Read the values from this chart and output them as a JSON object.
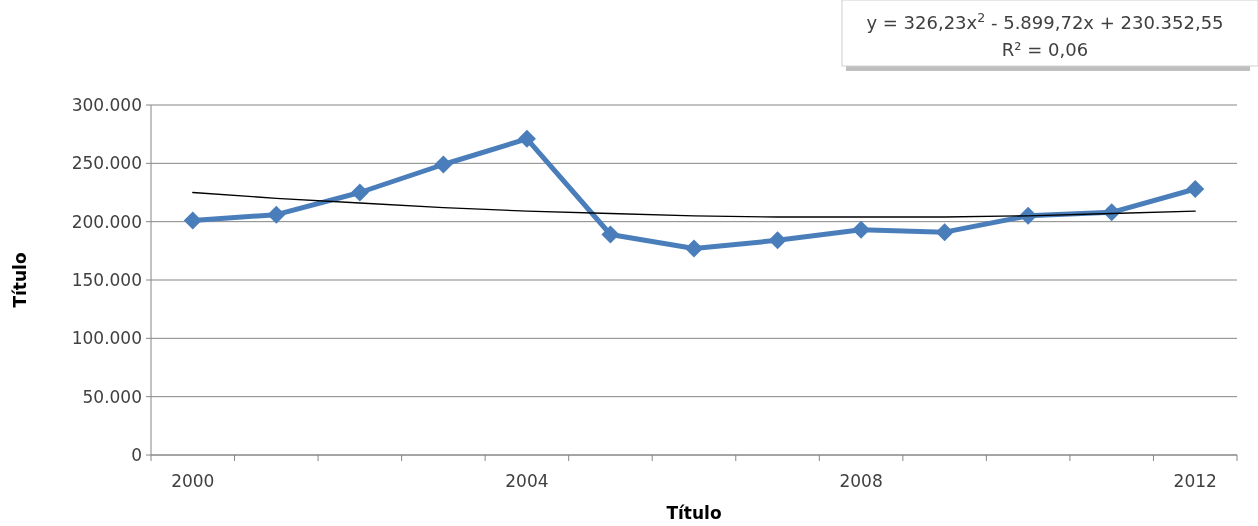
{
  "chart_data": {
    "type": "line",
    "xlabel": "Título",
    "ylabel": "Título",
    "categories": [
      "2000",
      null,
      null,
      null,
      "2004",
      null,
      null,
      null,
      "2008",
      null,
      null,
      null,
      "2012"
    ],
    "series": [
      {
        "color": "#4a7ebb",
        "marker": "diamond",
        "values": [
          201000,
          206000,
          225000,
          249000,
          271000,
          189000,
          177000,
          184000,
          193000,
          191000,
          205000,
          208000,
          228000
        ]
      },
      {
        "type": "line",
        "color": "#000000",
        "marker": "none",
        "values": [
          225000,
          220000,
          216000,
          212000,
          209000,
          207000,
          205000,
          204000,
          204000,
          204000,
          205000,
          207000,
          209000
        ]
      }
    ],
    "ylim": [
      0,
      300000
    ],
    "yticks": [
      0,
      {
        "value": 50000,
        "label": "50.000"
      },
      {
        "value": 100000,
        "label": "100.000"
      },
      {
        "value": 150000,
        "label": "150.000"
      },
      {
        "value": 200000,
        "label": "200.000"
      },
      {
        "value": 250000,
        "label": "250.000"
      },
      {
        "value": 300000,
        "label": "300.000"
      }
    ],
    "grid": "y",
    "line_style": "solid",
    "annotations": [
      "y = 326,23x$^{2}$ - 5.899,72x + 230.352,55",
      "R² = 0,06"
    ]
  }
}
